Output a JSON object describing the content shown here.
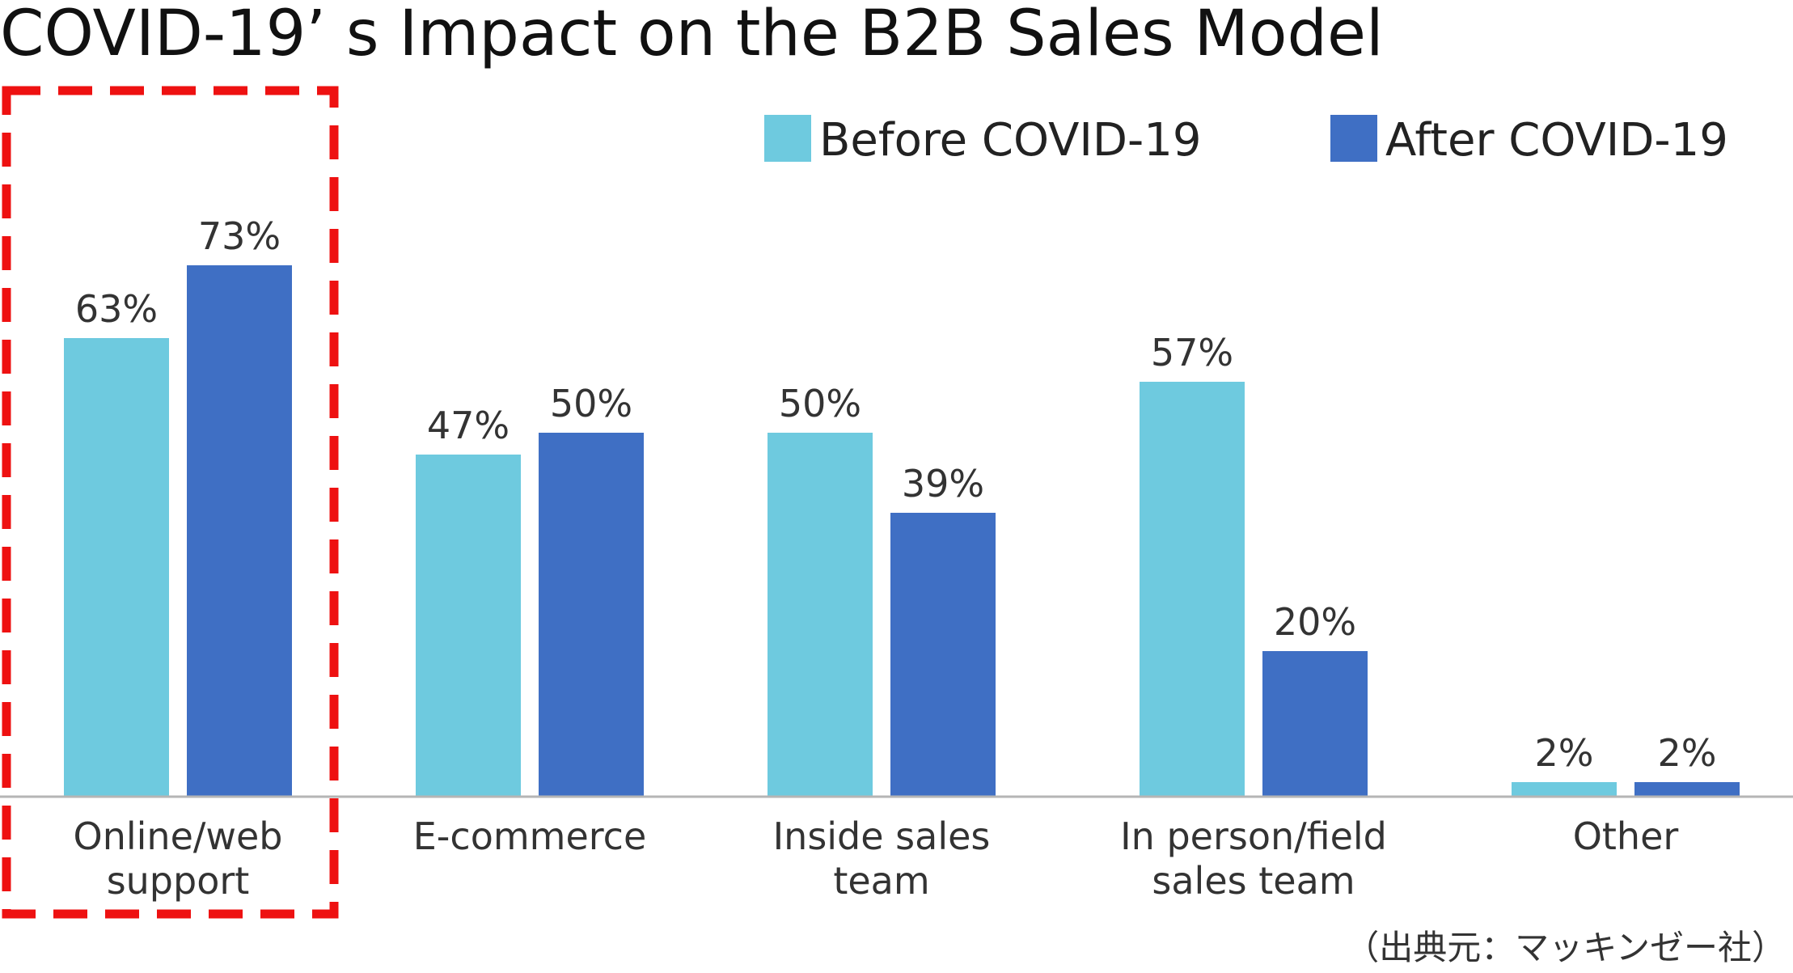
{
  "chart_data": {
    "type": "bar",
    "title": "COVID-19’ s Impact on the B2B Sales Model",
    "categories": [
      [
        "Online/web",
        "support"
      ],
      [
        "E-commerce"
      ],
      [
        "Inside sales",
        "team"
      ],
      [
        "In person/field",
        "sales team"
      ],
      [
        "Other"
      ]
    ],
    "series": [
      {
        "name": "Before COVID-19",
        "color": "#6ecadf",
        "values": [
          63,
          47,
          50,
          57,
          2
        ],
        "labels": [
          "63%",
          "47%",
          "50%",
          "57%",
          "2%"
        ]
      },
      {
        "name": "After COVID-19",
        "color": "#3f6fc4",
        "values": [
          73,
          50,
          39,
          20,
          2
        ],
        "labels": [
          "73%",
          "50%",
          "39%",
          "20%",
          "2%"
        ]
      }
    ],
    "ylim": [
      0,
      100
    ],
    "grid": false,
    "legend": "top-right",
    "highlight": {
      "category_index": 0,
      "style": "dashed",
      "color": "#ee1111"
    },
    "source": "（出典元：マッキンゼー社）"
  }
}
